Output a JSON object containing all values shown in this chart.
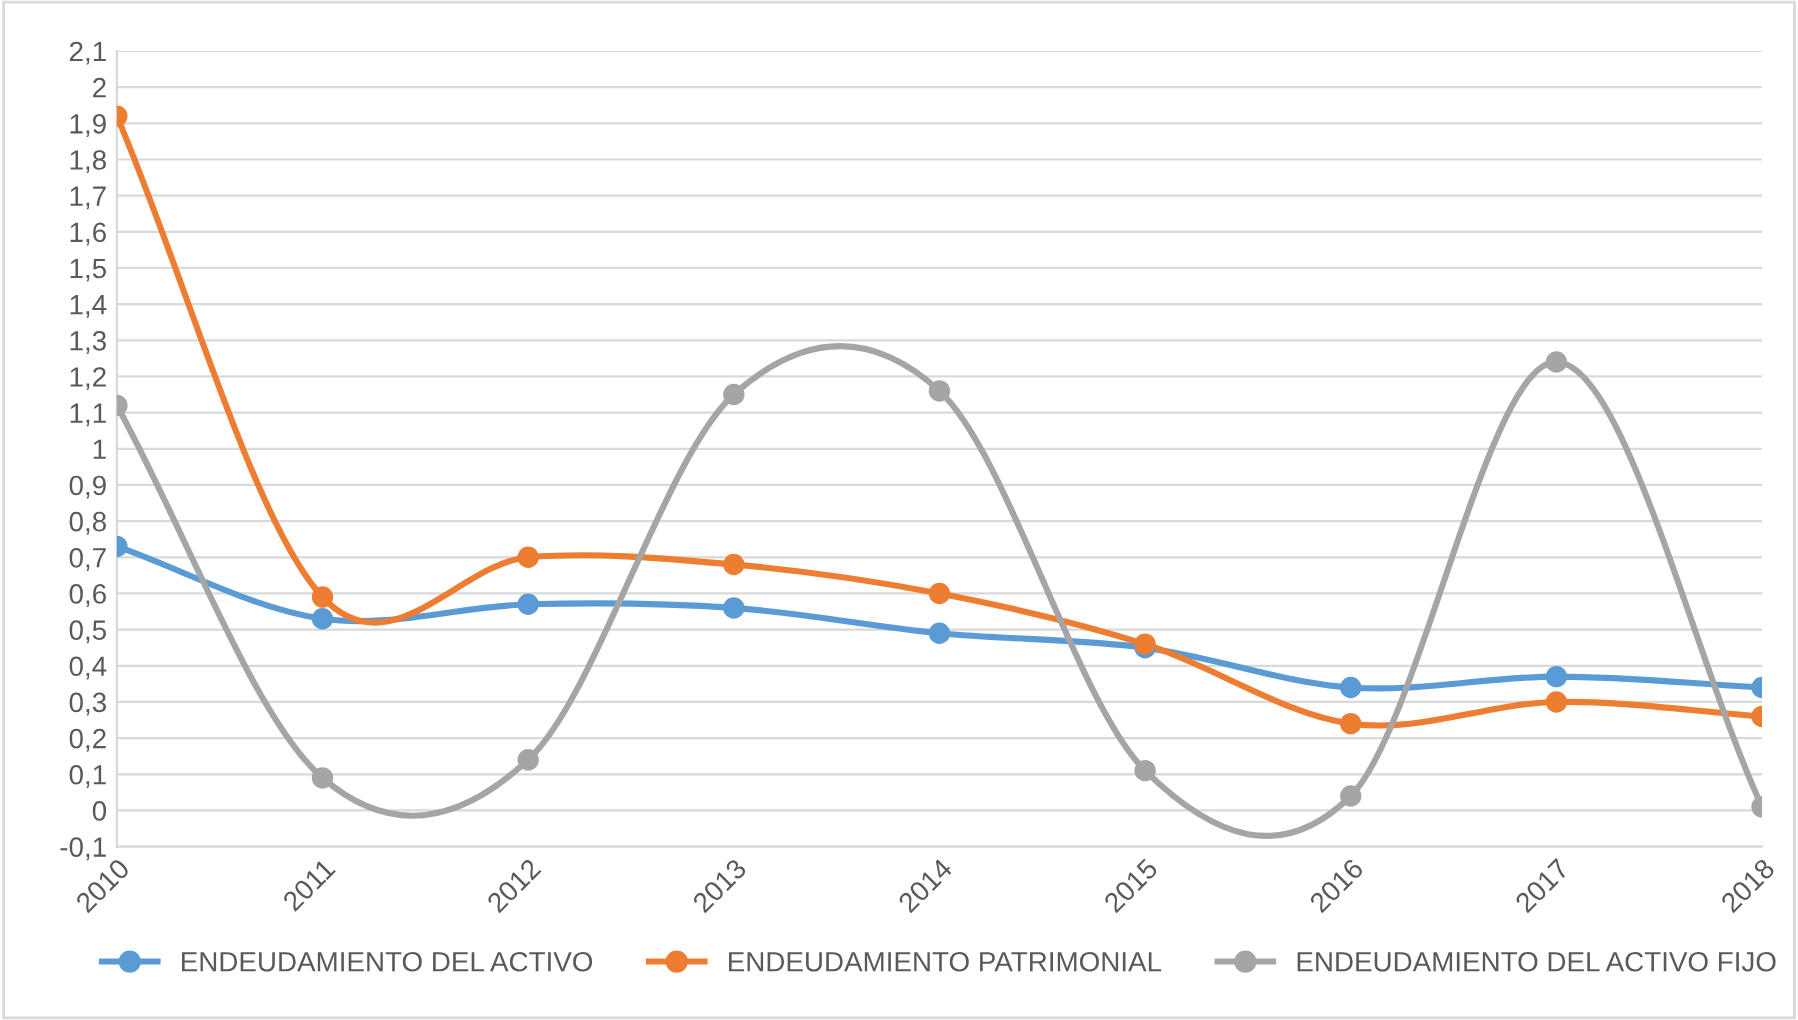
{
  "chart_data": {
    "type": "line",
    "categories": [
      "2010",
      "2011",
      "2012",
      "2013",
      "2014",
      "2015",
      "2016",
      "2017",
      "2018"
    ],
    "series": [
      {
        "name": "ENDEUDAMIENTO DEL ACTIVO",
        "color": "#5b9bd5",
        "values": [
          0.73,
          0.53,
          0.57,
          0.56,
          0.49,
          0.45,
          0.34,
          0.37,
          0.34
        ]
      },
      {
        "name": "ENDEUDAMIENTO PATRIMONIAL",
        "color": "#ed7d31",
        "values": [
          1.92,
          0.59,
          0.7,
          0.68,
          0.6,
          0.46,
          0.24,
          0.3,
          0.26
        ]
      },
      {
        "name": "ENDEUDAMIENTO DEL ACTIVO FIJO",
        "color": "#a5a5a5",
        "values": [
          1.12,
          0.09,
          0.14,
          1.15,
          1.16,
          0.11,
          0.04,
          1.24,
          0.01
        ]
      }
    ],
    "ylim": [
      -0.1,
      2.1
    ],
    "yticks": [
      {
        "value": -0.1,
        "label": "-0,1"
      },
      0,
      {
        "value": 0.1,
        "label": "0,1"
      },
      {
        "value": 0.2,
        "label": "0,2"
      },
      {
        "value": 0.3,
        "label": "0,3"
      },
      {
        "value": 0.4,
        "label": "0,4"
      },
      {
        "value": 0.5,
        "label": "0,5"
      },
      {
        "value": 0.6,
        "label": "0,6"
      },
      {
        "value": 0.7,
        "label": "0,7"
      },
      {
        "value": 0.8,
        "label": "0,8"
      },
      {
        "value": 0.9,
        "label": "0,9"
      },
      1,
      {
        "value": 1.1,
        "label": "1,1"
      },
      {
        "value": 1.2,
        "label": "1,2"
      },
      {
        "value": 1.3,
        "label": "1,3"
      },
      {
        "value": 1.4,
        "label": "1,4"
      },
      {
        "value": 1.5,
        "label": "1,5"
      },
      {
        "value": 1.6,
        "label": "1,6"
      },
      {
        "value": 1.7,
        "label": "1,7"
      },
      {
        "value": 1.8,
        "label": "1,8"
      },
      {
        "value": 1.9,
        "label": "1,9"
      },
      2,
      {
        "value": 2.1,
        "label": "2,1"
      }
    ],
    "grid": "y",
    "legend": "bottom",
    "marker": "circle",
    "line_style": "solid"
  }
}
